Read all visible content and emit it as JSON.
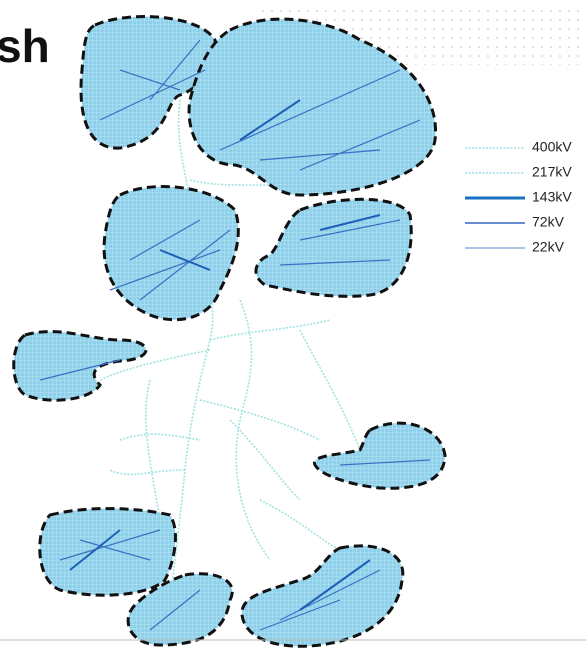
{
  "title": "sh",
  "legend": [
    "400kV",
    "217kV",
    "143kV",
    "72kV",
    "22kV"
  ]
}
